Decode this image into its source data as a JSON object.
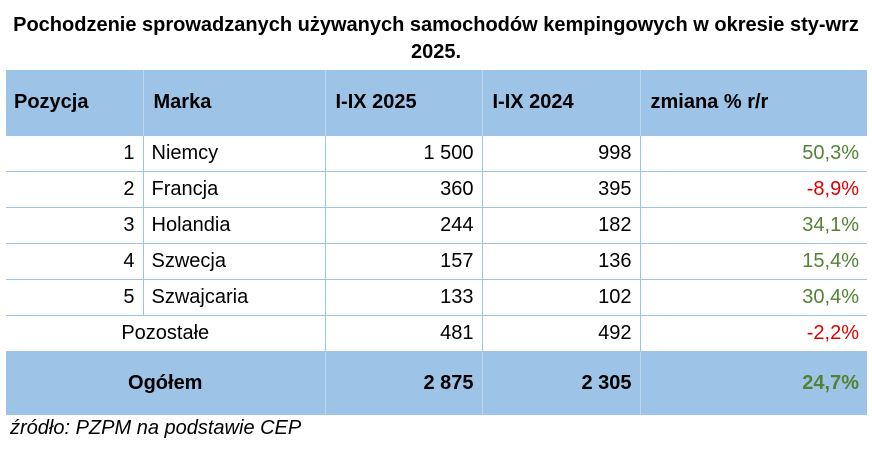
{
  "title": "Pochodzenie sprowadzanych używanych samochodów kempingowych w okresie sty-wrz 2025.",
  "table": {
    "headers": [
      "Pozycja",
      "Marka",
      "I-IX 2025",
      "I-IX 2024",
      "zmiana % r/r"
    ],
    "rows": [
      {
        "pos": "1",
        "brand": "Niemcy",
        "y2025": "1 500",
        "y2024": "998",
        "change": "50,3%"
      },
      {
        "pos": "2",
        "brand": "Francja",
        "y2025": "360",
        "y2024": "395",
        "change": "-8,9%"
      },
      {
        "pos": "3",
        "brand": "Holandia",
        "y2025": "244",
        "y2024": "182",
        "change": "34,1%"
      },
      {
        "pos": "4",
        "brand": "Szwecja",
        "y2025": "157",
        "y2024": "136",
        "change": "15,4%"
      },
      {
        "pos": "5",
        "brand": "Szwajcaria",
        "y2025": "133",
        "y2024": "102",
        "change": "30,4%"
      }
    ],
    "others": {
      "label": "Pozostałe",
      "y2025": "481",
      "y2024": "492",
      "change": "-2,2%"
    },
    "total": {
      "label": "Ogółem",
      "y2025": "2 875",
      "y2024": "2 305",
      "change": "24,7%"
    }
  },
  "source": "źródło: PZPM na podstawie CEP",
  "colors": {
    "header_bg": "#9dc3e6",
    "positive": "#548235",
    "negative": "#e00000"
  }
}
